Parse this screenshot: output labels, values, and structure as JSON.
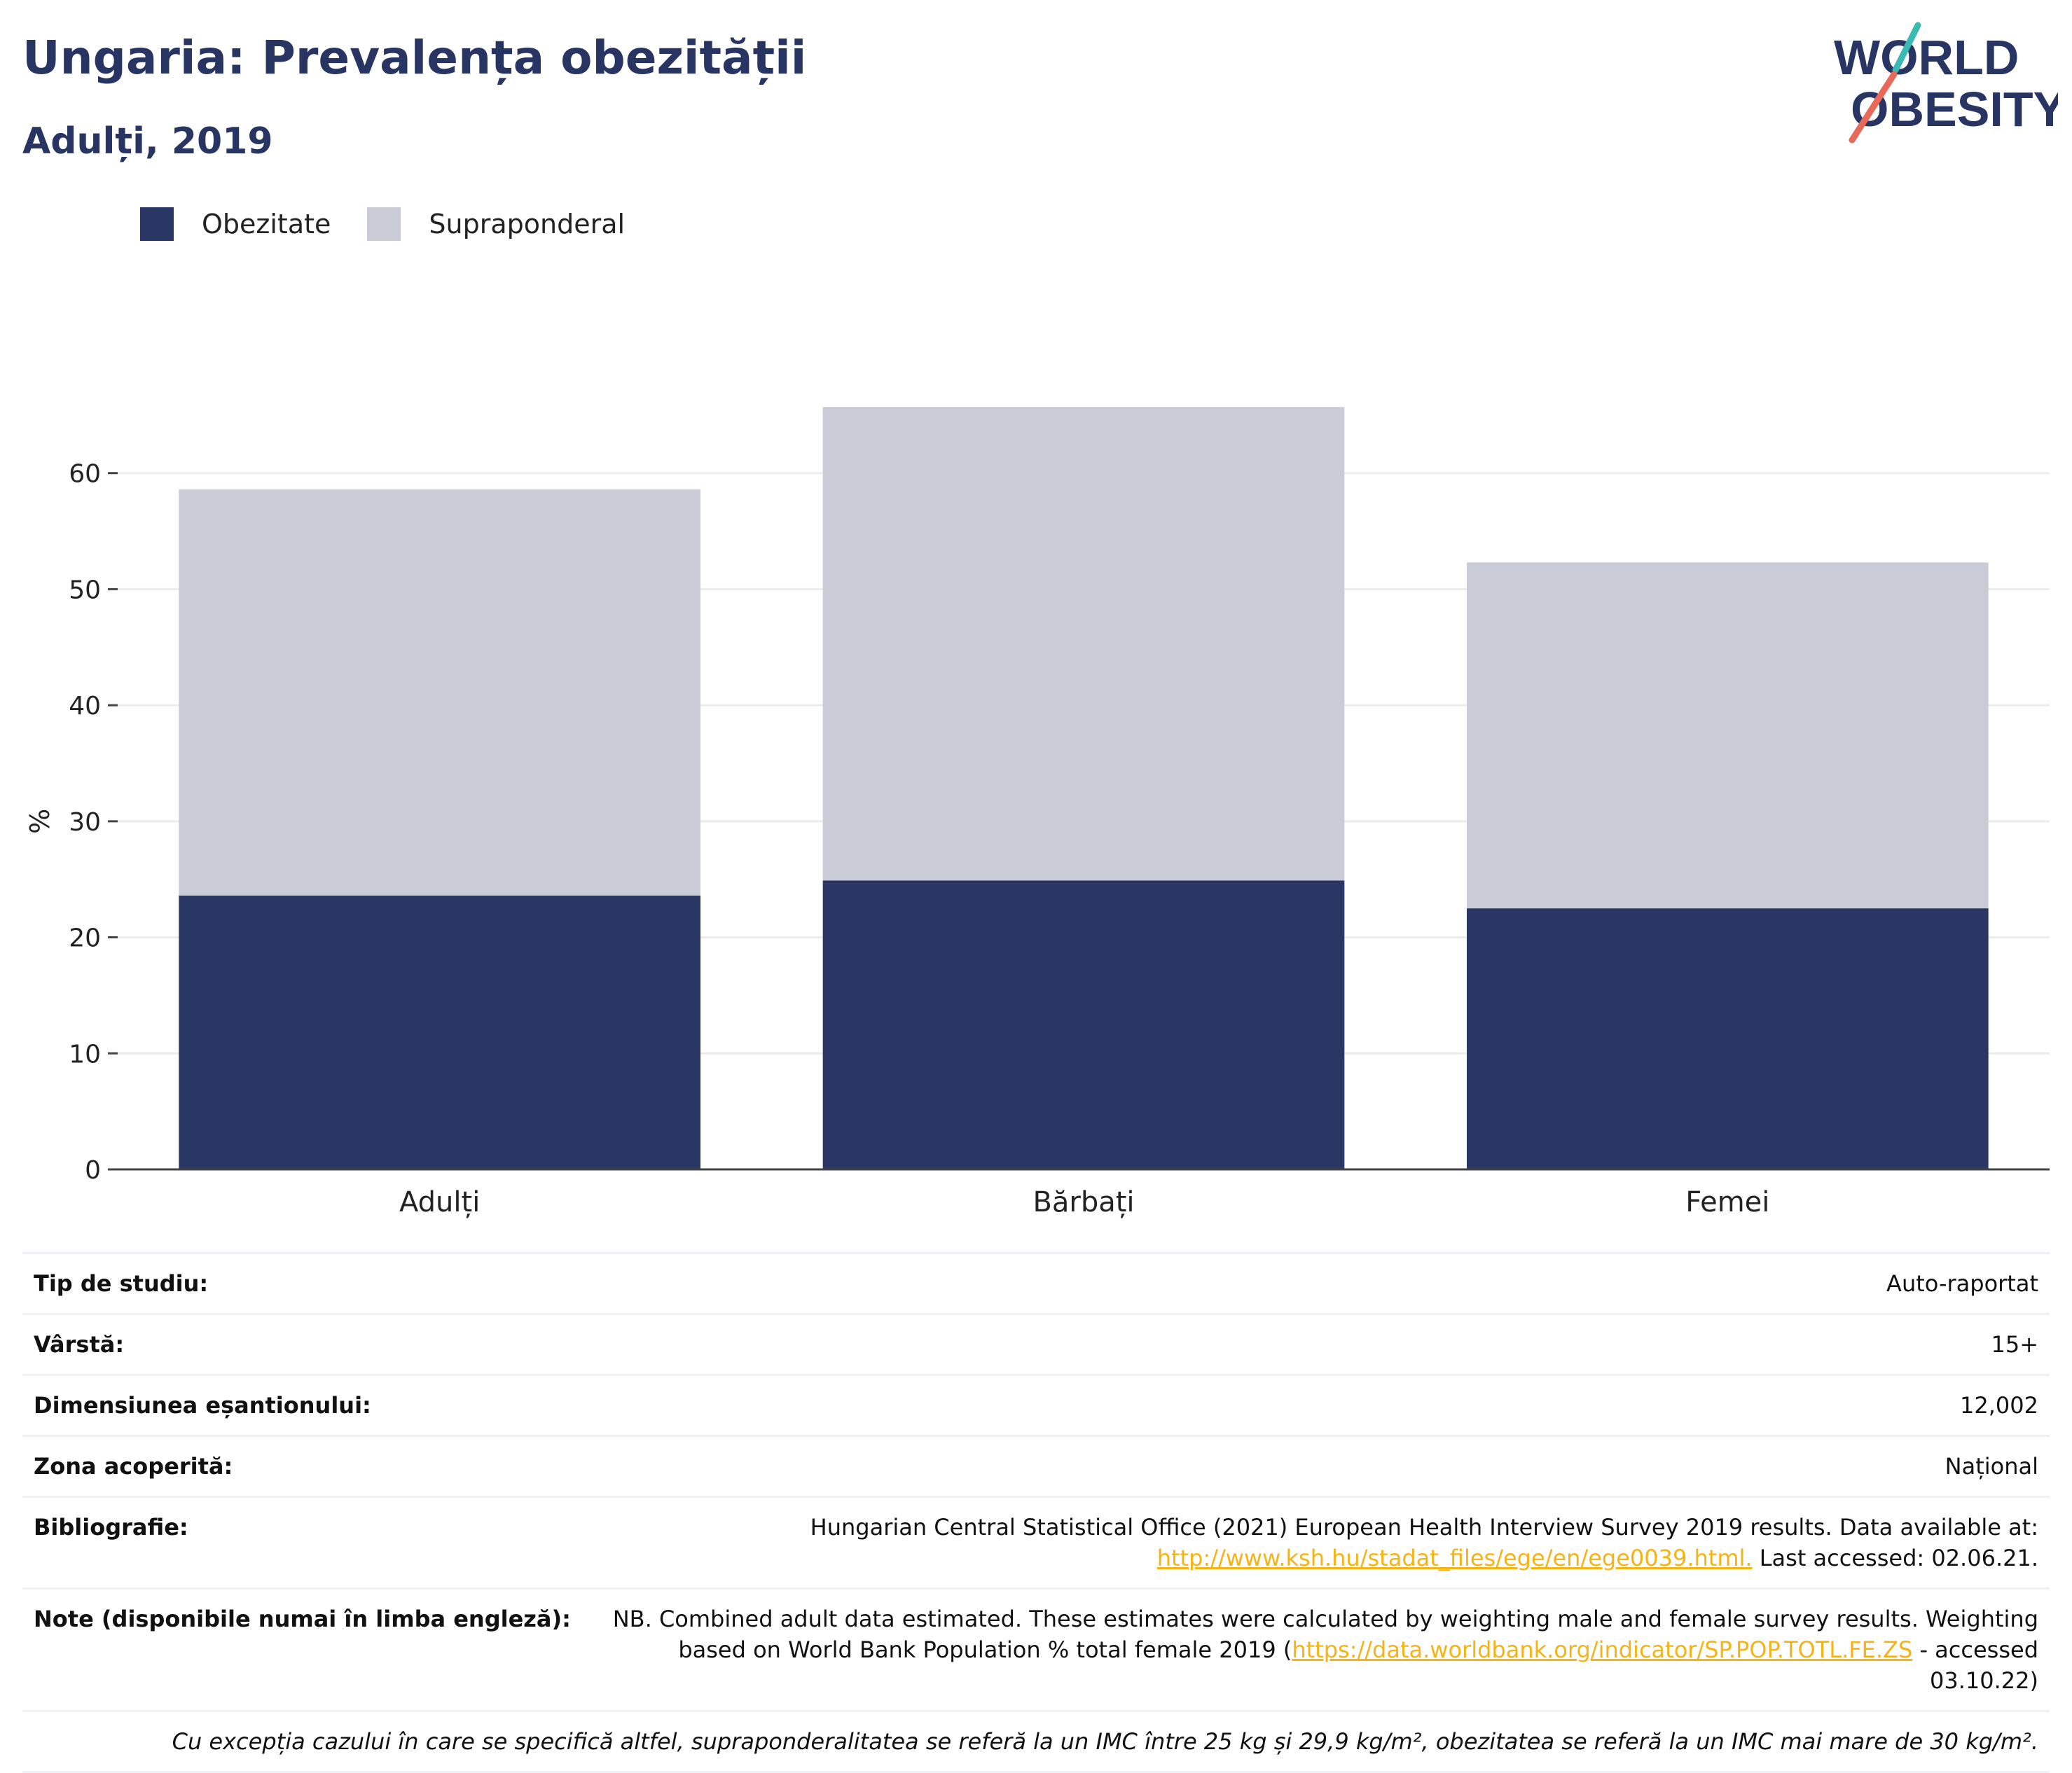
{
  "header": {
    "title": "Ungaria: Prevalența obezității",
    "subtitle": "Adulți, 2019"
  },
  "logo": {
    "line1": "WORLD",
    "line2": "OBESITY",
    "colors": {
      "text": "#283462",
      "accent_teal": "#3bb9b3",
      "accent_red": "#e8685a"
    }
  },
  "legend": {
    "items": [
      {
        "label": "Obezitate",
        "color": "#2a3764"
      },
      {
        "label": "Supraponderal",
        "color": "#c9cbd7"
      }
    ]
  },
  "chart_data": {
    "type": "bar",
    "stacked": true,
    "categories": [
      "Adulți",
      "Bărbați",
      "Femei"
    ],
    "series": [
      {
        "name": "Obezitate",
        "color": "#2a3764",
        "values": [
          23.6,
          24.9,
          22.5
        ]
      },
      {
        "name": "Supraponderal",
        "color": "#c9cbd7",
        "values": [
          35.0,
          40.8,
          29.8
        ]
      }
    ],
    "ylabel": "%",
    "yticks": [
      0,
      10,
      20,
      30,
      40,
      50,
      60
    ],
    "ylim": [
      0,
      70
    ],
    "grid": true
  },
  "info": {
    "rows": [
      {
        "label": "Tip de studiu:",
        "value": "Auto-raportat"
      },
      {
        "label": "Vârstă:",
        "value": "15+"
      },
      {
        "label": "Dimensiunea eșantionului:",
        "value": "12,002"
      },
      {
        "label": "Zona acoperită:",
        "value": "Național"
      }
    ],
    "bibliography": {
      "label": "Bibliografie:",
      "text1": "Hungarian Central Statistical Office (2021) European Health Interview Survey 2019 results. Data available at:",
      "link": "http://www.ksh.hu/stadat_files/ege/en/ege0039.html.",
      "text2": " Last accessed: 02.06.21."
    },
    "notes": {
      "label": "Note (disponibile numai în limba engleză):",
      "text1": "NB. Combined adult data estimated. These estimates were calculated by weighting male and female survey results. Weighting based on World Bank Population % total female 2019 (",
      "link": "https://data.worldbank.org/indicator/SP.POP.TOTL.FE.ZS",
      "text2": " - accessed 03.10.22)"
    },
    "footnote": "Cu excepția cazului în care se specifică altfel, supraponderalitatea se referă la un IMC între 25 kg și 29,9 kg/m², obezitatea se referă la un IMC mai mare de 30 kg/m²."
  }
}
